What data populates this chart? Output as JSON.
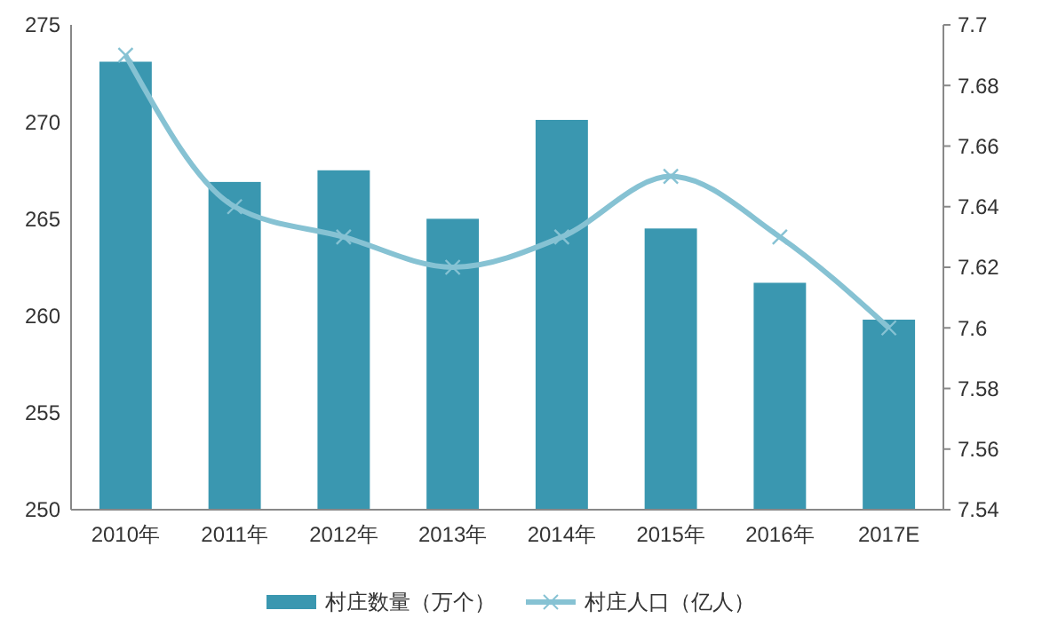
{
  "chart_data": {
    "type": "bar",
    "categories": [
      "2010年",
      "2011年",
      "2012年",
      "2013年",
      "2014年",
      "2015年",
      "2016年",
      "2017E"
    ],
    "series": [
      {
        "name": "村庄数量（万个）",
        "color": "#3a97b0",
        "values": [
          273.1,
          266.9,
          267.5,
          265.0,
          270.1,
          264.5,
          261.7,
          259.8
        ]
      },
      {
        "name": "村庄人口（亿人）",
        "type": "line",
        "axis": "y2",
        "color": "#86c2d3",
        "marker": "cross",
        "values": [
          7.69,
          7.64,
          7.63,
          7.62,
          7.63,
          7.65,
          7.63,
          7.6
        ]
      }
    ],
    "ylim": [
      250,
      275
    ],
    "yticks": [
      250,
      255,
      260,
      265,
      270,
      275
    ],
    "y2lim": [
      7.54,
      7.7
    ],
    "y2ticks": [
      7.54,
      7.56,
      7.58,
      7.6,
      7.62,
      7.64,
      7.66,
      7.68,
      7.7
    ],
    "grid": false,
    "legend": "bottom"
  }
}
